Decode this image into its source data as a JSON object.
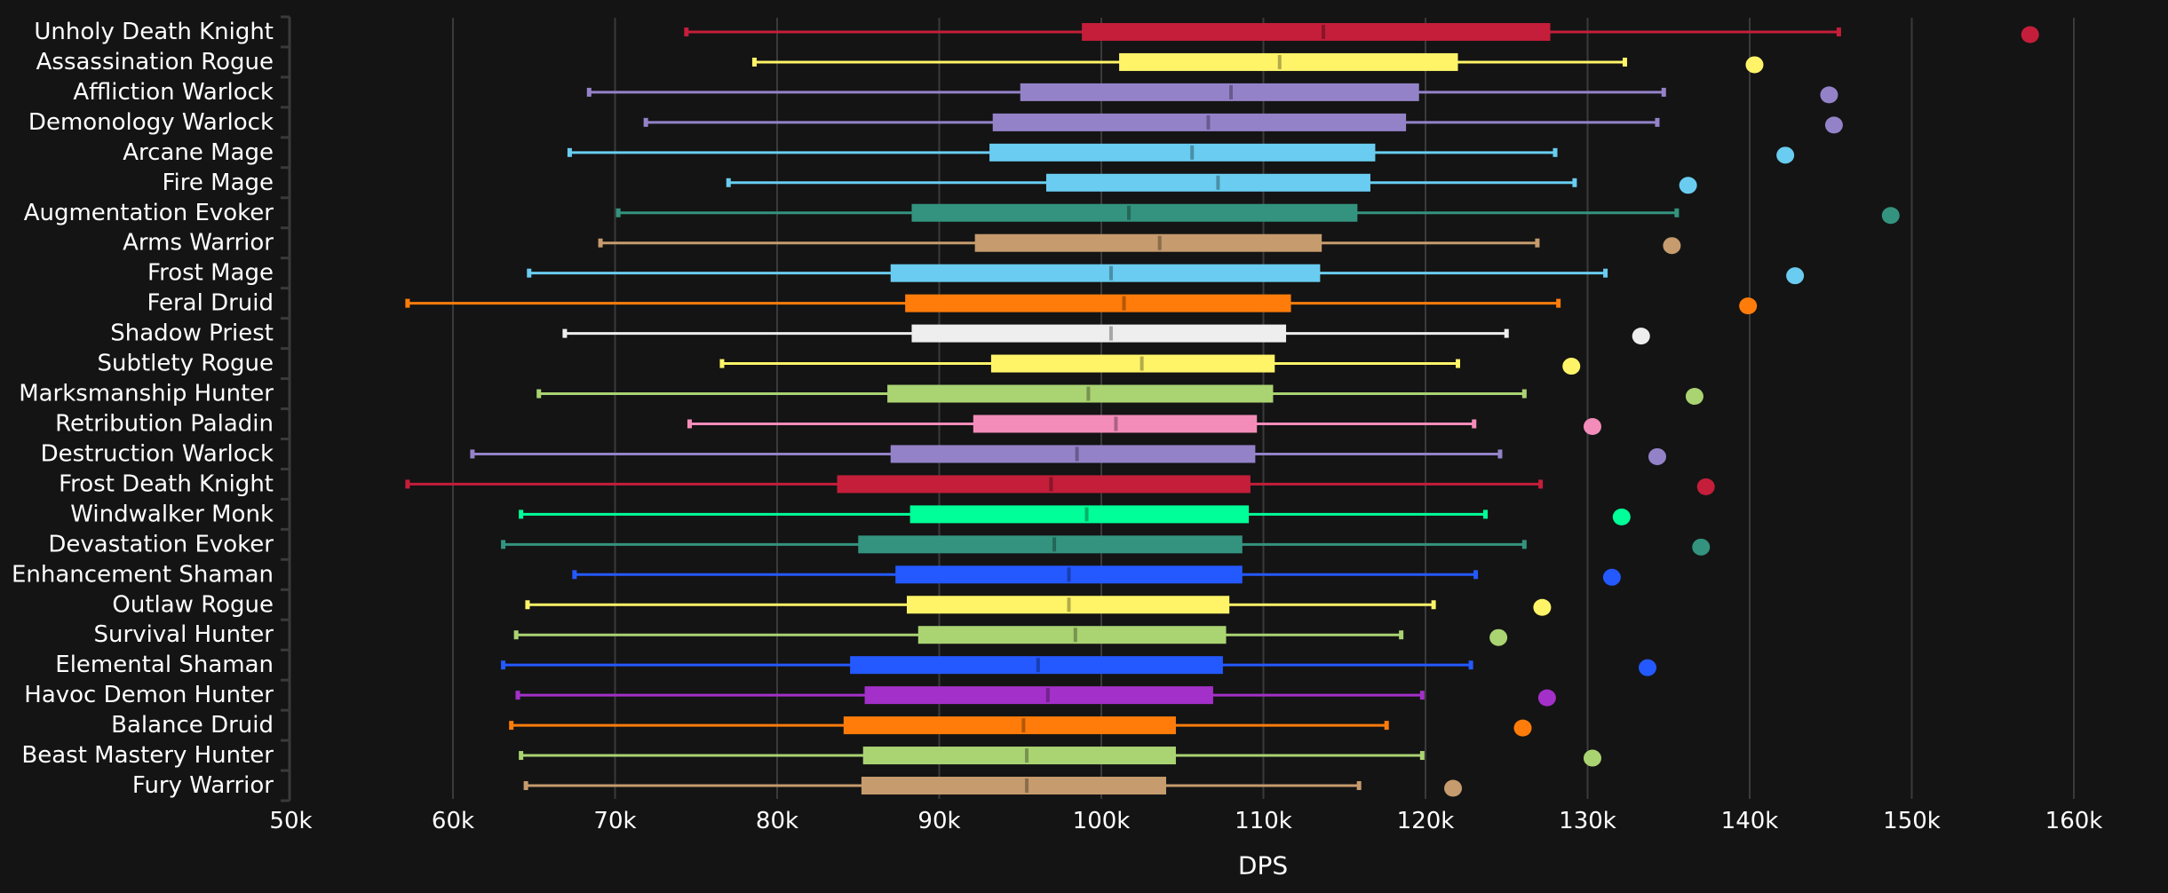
{
  "chart_data": {
    "type": "boxplot",
    "title": "",
    "xlabel": "DPS",
    "ylabel": "",
    "xlim": [
      50000,
      162000
    ],
    "x_ticks": [
      50000,
      60000,
      70000,
      80000,
      90000,
      100000,
      110000,
      120000,
      130000,
      140000,
      150000,
      160000
    ],
    "x_tick_labels": [
      "50k",
      "60k",
      "70k",
      "80k",
      "90k",
      "100k",
      "110k",
      "120k",
      "130k",
      "140k",
      "150k",
      "160k"
    ],
    "grid": "vertical",
    "legend": "none",
    "marker_description": "dot = maximum outlier",
    "series": [
      {
        "name": "Unholy Death Knight",
        "color": "#C41E3A",
        "min": 74400,
        "q1": 98800,
        "median": 113700,
        "q3": 127700,
        "max": 145500,
        "outlier": 157300
      },
      {
        "name": "Assassination Rogue",
        "color": "#FFF468",
        "min": 78600,
        "q1": 101100,
        "median": 111000,
        "q3": 122000,
        "max": 132300,
        "outlier": 140300
      },
      {
        "name": "Affliction Warlock",
        "color": "#9482C9",
        "min": 68400,
        "q1": 95000,
        "median": 108000,
        "q3": 119600,
        "max": 134700,
        "outlier": 144900
      },
      {
        "name": "Demonology Warlock",
        "color": "#9482C9",
        "min": 71900,
        "q1": 93300,
        "median": 106600,
        "q3": 118800,
        "max": 134300,
        "outlier": 145200
      },
      {
        "name": "Arcane Mage",
        "color": "#69CCF0",
        "min": 67200,
        "q1": 93100,
        "median": 105600,
        "q3": 116900,
        "max": 128000,
        "outlier": 142200
      },
      {
        "name": "Fire Mage",
        "color": "#69CCF0",
        "min": 77000,
        "q1": 96600,
        "median": 107200,
        "q3": 116600,
        "max": 129200,
        "outlier": 136200
      },
      {
        "name": "Augmentation Evoker",
        "color": "#33937F",
        "min": 70200,
        "q1": 88300,
        "median": 101700,
        "q3": 115800,
        "max": 135500,
        "outlier": 148700
      },
      {
        "name": "Arms Warrior",
        "color": "#C69B6D",
        "min": 69100,
        "q1": 92200,
        "median": 103600,
        "q3": 113600,
        "max": 126900,
        "outlier": 135200
      },
      {
        "name": "Frost Mage",
        "color": "#69CCF0",
        "min": 64700,
        "q1": 87000,
        "median": 100600,
        "q3": 113500,
        "max": 131100,
        "outlier": 142800
      },
      {
        "name": "Feral Druid",
        "color": "#FF7C0A",
        "min": 57200,
        "q1": 87900,
        "median": 101400,
        "q3": 111700,
        "max": 128200,
        "outlier": 139900
      },
      {
        "name": "Shadow Priest",
        "color": "#EEEEEE",
        "min": 66900,
        "q1": 88300,
        "median": 100600,
        "q3": 111400,
        "max": 125000,
        "outlier": 133300
      },
      {
        "name": "Subtlety Rogue",
        "color": "#FFF468",
        "min": 76600,
        "q1": 93200,
        "median": 102500,
        "q3": 110700,
        "max": 122000,
        "outlier": 129000
      },
      {
        "name": "Marksmanship Hunter",
        "color": "#AAD372",
        "min": 65300,
        "q1": 86800,
        "median": 99200,
        "q3": 110600,
        "max": 126100,
        "outlier": 136600
      },
      {
        "name": "Retribution Paladin",
        "color": "#F48CBA",
        "min": 74600,
        "q1": 92100,
        "median": 100900,
        "q3": 109600,
        "max": 123000,
        "outlier": 130300
      },
      {
        "name": "Destruction Warlock",
        "color": "#9482C9",
        "min": 61200,
        "q1": 87000,
        "median": 98500,
        "q3": 109500,
        "max": 124600,
        "outlier": 134300
      },
      {
        "name": "Frost Death Knight",
        "color": "#C41E3A",
        "min": 57200,
        "q1": 83700,
        "median": 96900,
        "q3": 109200,
        "max": 127100,
        "outlier": 137300
      },
      {
        "name": "Windwalker Monk",
        "color": "#00FF98",
        "min": 64200,
        "q1": 88200,
        "median": 99100,
        "q3": 109100,
        "max": 123700,
        "outlier": 132100
      },
      {
        "name": "Devastation Evoker",
        "color": "#33937F",
        "min": 63100,
        "q1": 85000,
        "median": 97100,
        "q3": 108700,
        "max": 126100,
        "outlier": 137000
      },
      {
        "name": "Enhancement Shaman",
        "color": "#2459FF",
        "min": 67500,
        "q1": 87300,
        "median": 98000,
        "q3": 108700,
        "max": 123100,
        "outlier": 131500
      },
      {
        "name": "Outlaw Rogue",
        "color": "#FFF468",
        "min": 64600,
        "q1": 88000,
        "median": 98000,
        "q3": 107900,
        "max": 120500,
        "outlier": 127200
      },
      {
        "name": "Survival Hunter",
        "color": "#AAD372",
        "min": 63900,
        "q1": 88700,
        "median": 98400,
        "q3": 107700,
        "max": 118500,
        "outlier": 124500
      },
      {
        "name": "Elemental Shaman",
        "color": "#2459FF",
        "min": 63100,
        "q1": 84500,
        "median": 96100,
        "q3": 107500,
        "max": 122800,
        "outlier": 133700
      },
      {
        "name": "Havoc Demon Hunter",
        "color": "#A330C9",
        "min": 64000,
        "q1": 85400,
        "median": 96700,
        "q3": 106900,
        "max": 119800,
        "outlier": 127500
      },
      {
        "name": "Balance Druid",
        "color": "#FF7C0A",
        "min": 63600,
        "q1": 84100,
        "median": 95200,
        "q3": 104600,
        "max": 117600,
        "outlier": 126000
      },
      {
        "name": "Beast Mastery Hunter",
        "color": "#AAD372",
        "min": 64200,
        "q1": 85300,
        "median": 95400,
        "q3": 104600,
        "max": 119800,
        "outlier": 130300
      },
      {
        "name": "Fury Warrior",
        "color": "#C69B6D",
        "min": 64500,
        "q1": 85200,
        "median": 95400,
        "q3": 104000,
        "max": 115900,
        "outlier": 121700
      }
    ]
  },
  "theme": {
    "background": "#141414",
    "grid_color": "#3a3a3a",
    "text_color": "#ffffff"
  }
}
